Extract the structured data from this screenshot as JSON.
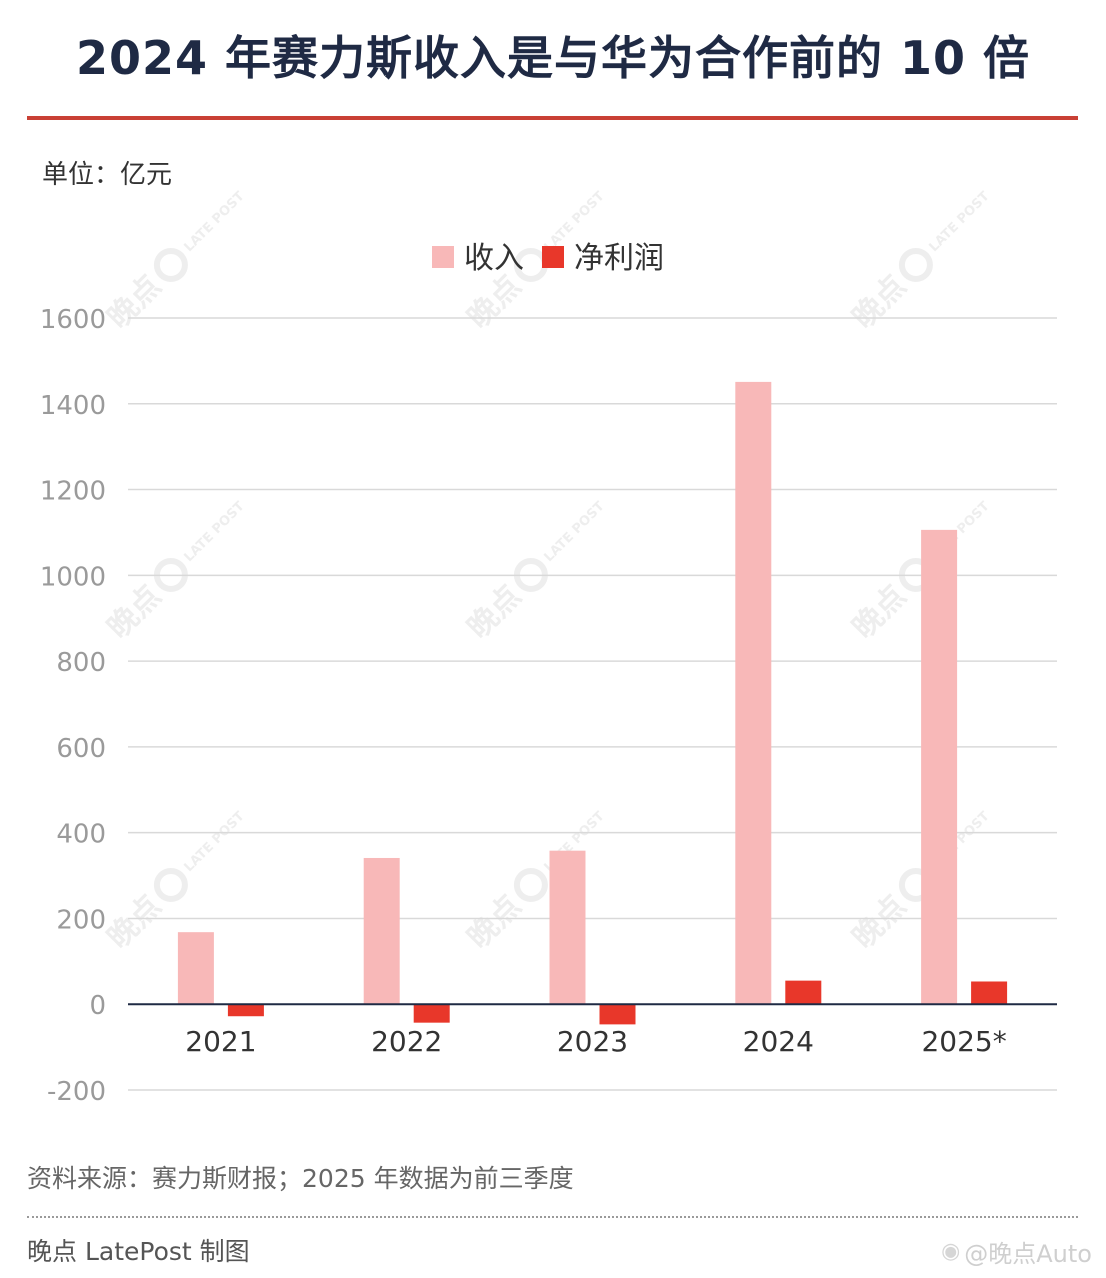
{
  "title": "2024 年赛力斯收入是与华为合作前的 10 倍",
  "unit": "单位：亿元",
  "source": "资料来源：赛力斯财报；2025 年数据为前三季度",
  "credit": "晚点 LatePost 制图",
  "weibo_handle": "@晚点Auto",
  "watermark_text": "晚点",
  "watermark_logo": "LATE POST",
  "colors": {
    "title": "#1f2a44",
    "rule": "#c94035",
    "revenue": "#f8b8b8",
    "profit": "#e8372a",
    "grid": "#d9d9d9",
    "axis_text": "#9a9a9a"
  },
  "chart_data": {
    "type": "bar",
    "categories": [
      "2021",
      "2022",
      "2023",
      "2024",
      "2025*"
    ],
    "series": [
      {
        "name": "收入",
        "values": [
          168,
          341,
          358,
          1451,
          1106
        ]
      },
      {
        "name": "净利润",
        "values": [
          -28,
          -43,
          -47,
          55,
          53
        ]
      }
    ],
    "ylim": [
      -200,
      1600
    ],
    "yticks": [
      "1600",
      "1400",
      "1200",
      "1000",
      "800",
      "600",
      "400",
      "200",
      "0",
      "-200"
    ],
    "legend": "top-center",
    "grid": true
  }
}
